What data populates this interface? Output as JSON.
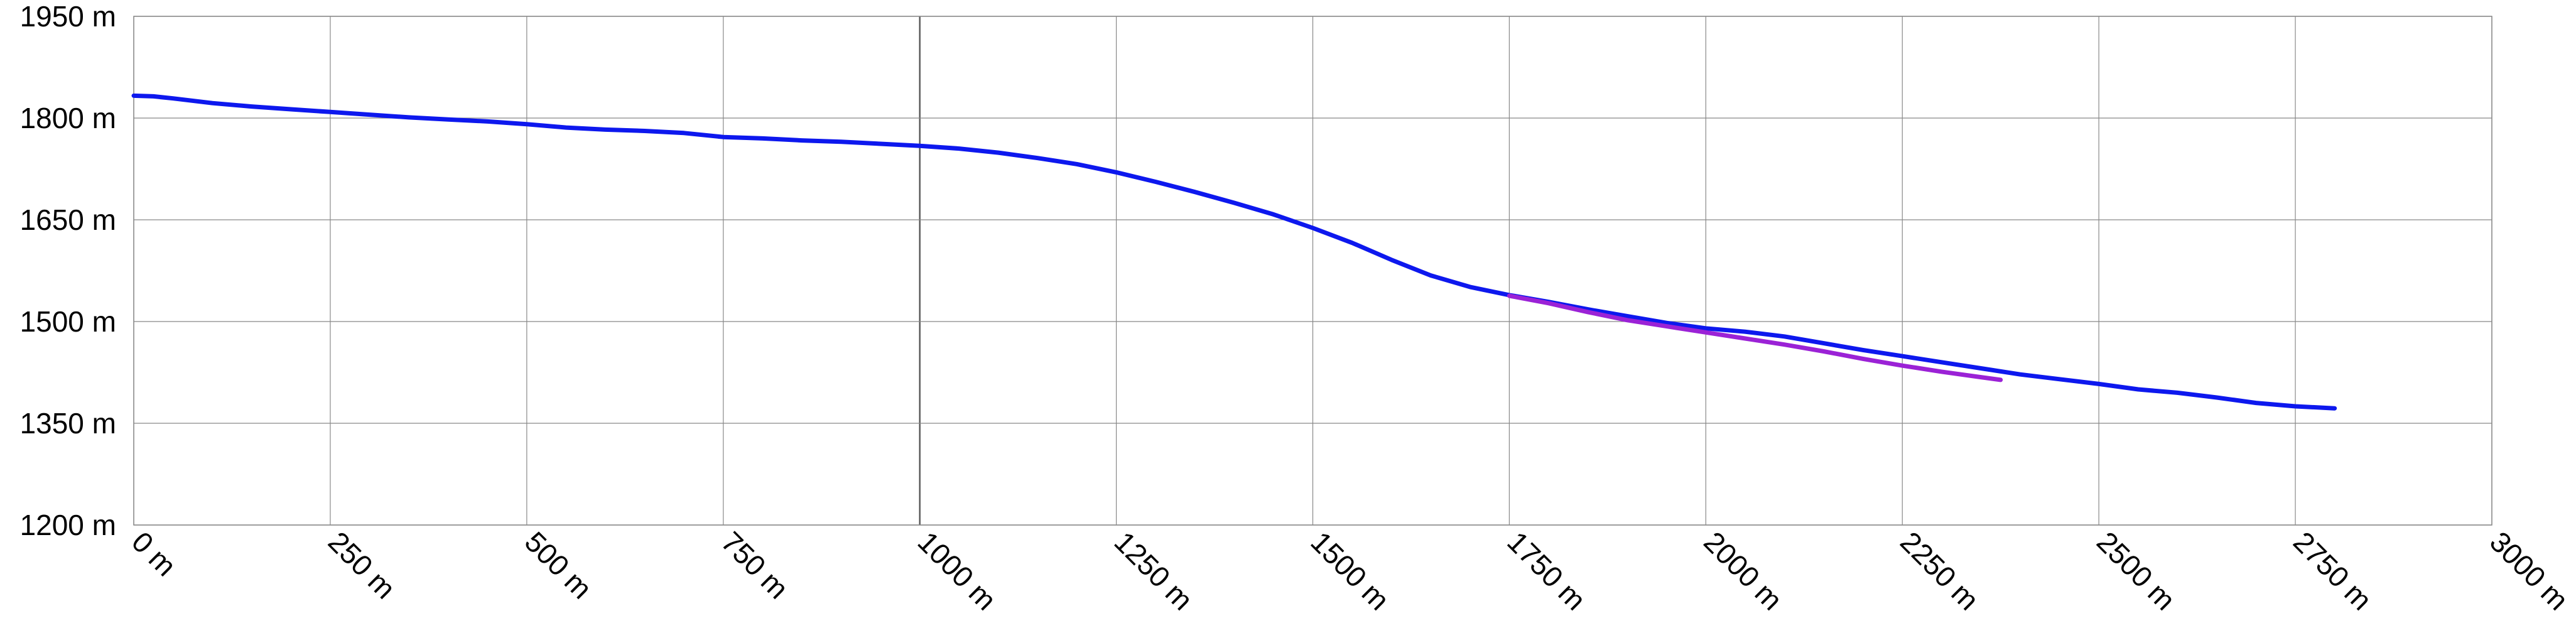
{
  "chart_data": {
    "type": "line",
    "title": "",
    "xlabel": "",
    "ylabel": "",
    "x_unit": "m",
    "y_unit": "m",
    "xlim": [
      0,
      3000
    ],
    "ylim": [
      1200,
      1950
    ],
    "x_ticks": [
      0,
      250,
      500,
      750,
      1000,
      1250,
      1500,
      1750,
      2000,
      2250,
      2500,
      2750,
      3000
    ],
    "y_ticks": [
      1200,
      1350,
      1500,
      1650,
      1800,
      1950
    ],
    "x_tick_labels": [
      "0 m",
      "250 m",
      "500 m",
      "750 m",
      "1000 m",
      "1250 m",
      "1500 m",
      "1750 m",
      "2000 m",
      "2250 m",
      "2500 m",
      "2750 m",
      "3000 m"
    ],
    "y_tick_labels": [
      "1200 m",
      "1350 m",
      "1500 m",
      "1650 m",
      "1800 m",
      "1950 m"
    ],
    "emphasized_x_gridlines": [
      1000
    ],
    "grid": true,
    "legend": "none",
    "series": [
      {
        "color": "#0d18ee",
        "points": [
          [
            0,
            1833
          ],
          [
            25,
            1832
          ],
          [
            50,
            1829
          ],
          [
            100,
            1822
          ],
          [
            150,
            1817
          ],
          [
            200,
            1813
          ],
          [
            250,
            1809
          ],
          [
            300,
            1805
          ],
          [
            350,
            1801
          ],
          [
            400,
            1798
          ],
          [
            450,
            1795
          ],
          [
            500,
            1791
          ],
          [
            550,
            1786
          ],
          [
            600,
            1783
          ],
          [
            650,
            1781
          ],
          [
            700,
            1778
          ],
          [
            750,
            1772
          ],
          [
            800,
            1770
          ],
          [
            850,
            1767
          ],
          [
            900,
            1765
          ],
          [
            950,
            1762
          ],
          [
            1000,
            1759
          ],
          [
            1050,
            1755
          ],
          [
            1100,
            1749
          ],
          [
            1150,
            1741
          ],
          [
            1200,
            1732
          ],
          [
            1250,
            1720
          ],
          [
            1300,
            1706
          ],
          [
            1350,
            1691
          ],
          [
            1400,
            1675
          ],
          [
            1450,
            1658
          ],
          [
            1500,
            1638
          ],
          [
            1550,
            1616
          ],
          [
            1600,
            1591
          ],
          [
            1650,
            1568
          ],
          [
            1700,
            1551
          ],
          [
            1750,
            1539
          ],
          [
            1800,
            1529
          ],
          [
            1850,
            1518
          ],
          [
            1900,
            1508
          ],
          [
            1950,
            1498
          ],
          [
            2000,
            1490
          ],
          [
            2050,
            1485
          ],
          [
            2100,
            1478
          ],
          [
            2150,
            1468
          ],
          [
            2200,
            1458
          ],
          [
            2250,
            1449
          ],
          [
            2300,
            1440
          ],
          [
            2350,
            1431
          ],
          [
            2400,
            1422
          ],
          [
            2450,
            1415
          ],
          [
            2500,
            1408
          ],
          [
            2550,
            1400
          ],
          [
            2600,
            1395
          ],
          [
            2650,
            1388
          ],
          [
            2700,
            1380
          ],
          [
            2750,
            1375
          ],
          [
            2800,
            1372
          ]
        ]
      },
      {
        "color": "#9b22d6",
        "points": [
          [
            1750,
            1538
          ],
          [
            1800,
            1527
          ],
          [
            1850,
            1514
          ],
          [
            1900,
            1502
          ],
          [
            1950,
            1493
          ],
          [
            2000,
            1484
          ],
          [
            2050,
            1475
          ],
          [
            2100,
            1466
          ],
          [
            2150,
            1456
          ],
          [
            2200,
            1445
          ],
          [
            2250,
            1435
          ],
          [
            2300,
            1426
          ],
          [
            2350,
            1418
          ],
          [
            2375,
            1414
          ]
        ]
      }
    ]
  }
}
